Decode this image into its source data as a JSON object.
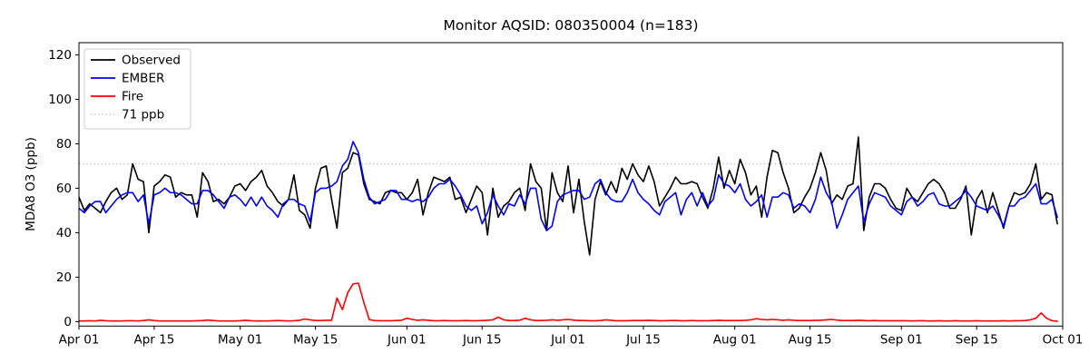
{
  "chart_data": {
    "type": "line",
    "title": "Monitor AQSID: 080350004 (n=183)",
    "xlabel": "",
    "ylabel": "MDA8 O3 (ppb)",
    "n_points": 183,
    "x_start_date": "Apr 01",
    "x_end_date": "Oct 01",
    "ylim": [
      -2,
      125.5
    ],
    "xlim_days": [
      0,
      183
    ],
    "grid": false,
    "y_ticks": [
      0,
      20,
      40,
      60,
      80,
      100,
      120
    ],
    "x_ticks": [
      {
        "label": "Apr 01",
        "day": 0
      },
      {
        "label": "Apr 15",
        "day": 14
      },
      {
        "label": "May 01",
        "day": 30
      },
      {
        "label": "May 15",
        "day": 44
      },
      {
        "label": "Jun 01",
        "day": 61
      },
      {
        "label": "Jun 15",
        "day": 75
      },
      {
        "label": "Jul 01",
        "day": 91
      },
      {
        "label": "Jul 15",
        "day": 105
      },
      {
        "label": "Aug 01",
        "day": 122
      },
      {
        "label": "Aug 15",
        "day": 136
      },
      {
        "label": "Sep 01",
        "day": 153
      },
      {
        "label": "Sep 15",
        "day": 167
      },
      {
        "label": "Oct 01",
        "day": 183
      }
    ],
    "threshold": {
      "label": "71 ppb",
      "value": 71,
      "color": "#c8c8c8",
      "style": "dotted"
    },
    "legend": {
      "position": "upper left",
      "items": [
        {
          "label": "Observed",
          "color": "#000000",
          "style": "solid"
        },
        {
          "label": "EMBER",
          "color": "#0000ff",
          "style": "solid"
        },
        {
          "label": "Fire",
          "color": "#ff0000",
          "style": "solid"
        },
        {
          "label": "71 ppb",
          "color": "#c8c8c8",
          "style": "dotted"
        }
      ]
    },
    "series": [
      {
        "name": "Observed",
        "color": "#000000",
        "values": [
          56,
          50,
          53,
          51,
          49,
          54,
          58,
          60,
          55,
          57,
          71,
          64,
          63,
          40,
          61,
          63,
          66,
          65,
          56,
          58,
          57,
          57,
          47,
          67,
          63,
          54,
          55,
          53,
          56,
          61,
          62,
          59,
          63,
          65,
          68,
          61,
          58,
          54,
          52,
          55,
          66,
          50,
          48,
          42,
          60,
          69,
          70,
          55,
          42,
          67,
          69,
          76,
          75,
          62,
          55,
          54,
          53,
          58,
          59,
          58,
          58,
          55,
          58,
          64,
          48,
          58,
          65,
          64,
          63,
          65,
          55,
          56,
          49,
          55,
          61,
          58,
          39,
          60,
          47,
          52,
          54,
          58,
          60,
          50,
          71,
          63,
          60,
          41,
          67,
          58,
          54,
          70,
          49,
          64,
          45,
          30,
          55,
          63,
          57,
          63,
          58,
          69,
          64,
          71,
          66,
          63,
          70,
          63,
          52,
          56,
          60,
          65,
          62,
          62,
          63,
          62,
          56,
          51,
          60,
          74,
          60,
          68,
          62,
          73,
          67,
          57,
          61,
          47,
          65,
          77,
          76,
          67,
          60,
          49,
          51,
          56,
          60,
          67,
          76,
          68,
          53,
          57,
          55,
          61,
          62,
          83,
          41,
          56,
          62,
          62,
          60,
          55,
          51,
          50,
          60,
          56,
          54,
          58,
          62,
          64,
          62,
          58,
          51,
          51,
          55,
          61,
          39,
          55,
          59,
          49,
          58,
          50,
          42,
          52,
          58,
          57,
          58,
          62,
          71,
          55,
          58,
          57,
          44
        ]
      },
      {
        "name": "EMBER",
        "color": "#0000ff",
        "values": [
          51,
          49,
          52,
          54,
          54,
          49,
          52,
          55,
          57,
          58,
          58,
          54,
          57,
          44,
          57,
          58,
          60,
          58,
          58,
          57,
          55,
          53,
          53,
          59,
          59,
          57,
          54,
          51,
          56,
          57,
          55,
          52,
          56,
          52,
          56,
          52,
          50,
          47,
          53,
          55,
          55,
          53,
          52,
          45,
          58,
          60,
          60,
          61,
          63,
          70,
          73,
          81,
          76,
          64,
          56,
          53,
          54,
          55,
          59,
          59,
          55,
          55,
          54,
          55,
          54,
          56,
          60,
          62,
          62,
          64,
          61,
          57,
          52,
          50,
          52,
          44,
          49,
          57,
          52,
          48,
          53,
          52,
          57,
          53,
          60,
          60,
          46,
          41,
          43,
          54,
          57,
          58,
          59,
          59,
          55,
          56,
          62,
          64,
          58,
          55,
          54,
          54,
          58,
          64,
          58,
          55,
          53,
          50,
          48,
          54,
          56,
          58,
          48,
          55,
          58,
          52,
          58,
          52,
          55,
          66,
          62,
          61,
          58,
          62,
          55,
          52,
          54,
          57,
          47,
          56,
          56,
          58,
          57,
          51,
          53,
          52,
          49,
          55,
          65,
          58,
          54,
          42,
          48,
          55,
          58,
          61,
          45,
          53,
          58,
          57,
          56,
          52,
          50,
          48,
          54,
          56,
          52,
          54,
          57,
          58,
          53,
          52,
          52,
          54,
          56,
          59,
          56,
          52,
          51,
          50,
          52,
          48,
          43,
          52,
          52,
          55,
          56,
          59,
          62,
          53,
          53,
          55,
          47
        ]
      },
      {
        "name": "Fire",
        "color": "#ff0000",
        "values": [
          0.3,
          0.3,
          0.4,
          0.3,
          0.6,
          0.4,
          0.3,
          0.3,
          0.3,
          0.4,
          0.4,
          0.3,
          0.5,
          0.8,
          0.5,
          0.3,
          0.3,
          0.3,
          0.3,
          0.3,
          0.3,
          0.3,
          0.4,
          0.5,
          0.7,
          0.5,
          0.3,
          0.3,
          0.3,
          0.3,
          0.4,
          0.6,
          0.4,
          0.3,
          0.3,
          0.3,
          0.4,
          0.5,
          0.4,
          0.3,
          0.4,
          0.6,
          1.2,
          0.8,
          0.5,
          0.5,
          0.6,
          0.6,
          10.6,
          5.4,
          13.0,
          17.0,
          17.3,
          8.6,
          0.9,
          0.5,
          0.4,
          0.4,
          0.4,
          0.5,
          0.6,
          1.5,
          1.0,
          0.6,
          0.8,
          0.6,
          0.4,
          0.4,
          0.5,
          0.4,
          0.4,
          0.4,
          0.5,
          0.4,
          0.4,
          0.5,
          0.6,
          0.8,
          2.0,
          0.8,
          0.5,
          0.5,
          0.6,
          1.5,
          0.8,
          0.5,
          0.5,
          0.6,
          0.8,
          0.6,
          0.8,
          1.0,
          0.7,
          0.5,
          0.5,
          0.4,
          0.4,
          0.5,
          0.8,
          0.6,
          0.4,
          0.4,
          0.4,
          0.5,
          0.5,
          0.5,
          0.6,
          0.5,
          0.4,
          0.4,
          0.5,
          0.5,
          0.4,
          0.4,
          0.5,
          0.4,
          0.4,
          0.4,
          0.5,
          0.6,
          0.5,
          0.5,
          0.5,
          0.5,
          0.6,
          0.8,
          1.3,
          1.0,
          0.8,
          1.0,
          0.8,
          0.6,
          0.8,
          0.6,
          0.5,
          0.5,
          0.5,
          0.6,
          0.6,
          0.8,
          1.0,
          0.7,
          0.5,
          0.5,
          0.5,
          0.6,
          0.5,
          0.4,
          0.5,
          0.4,
          0.4,
          0.4,
          0.4,
          0.4,
          0.4,
          0.3,
          0.4,
          0.4,
          0.3,
          0.3,
          0.4,
          0.3,
          0.3,
          0.4,
          0.3,
          0.3,
          0.3,
          0.4,
          0.3,
          0.3,
          0.3,
          0.3,
          0.4,
          0.3,
          0.4,
          0.4,
          0.5,
          0.8,
          1.5,
          3.9,
          1.5,
          0.4,
          0.2
        ]
      }
    ]
  }
}
